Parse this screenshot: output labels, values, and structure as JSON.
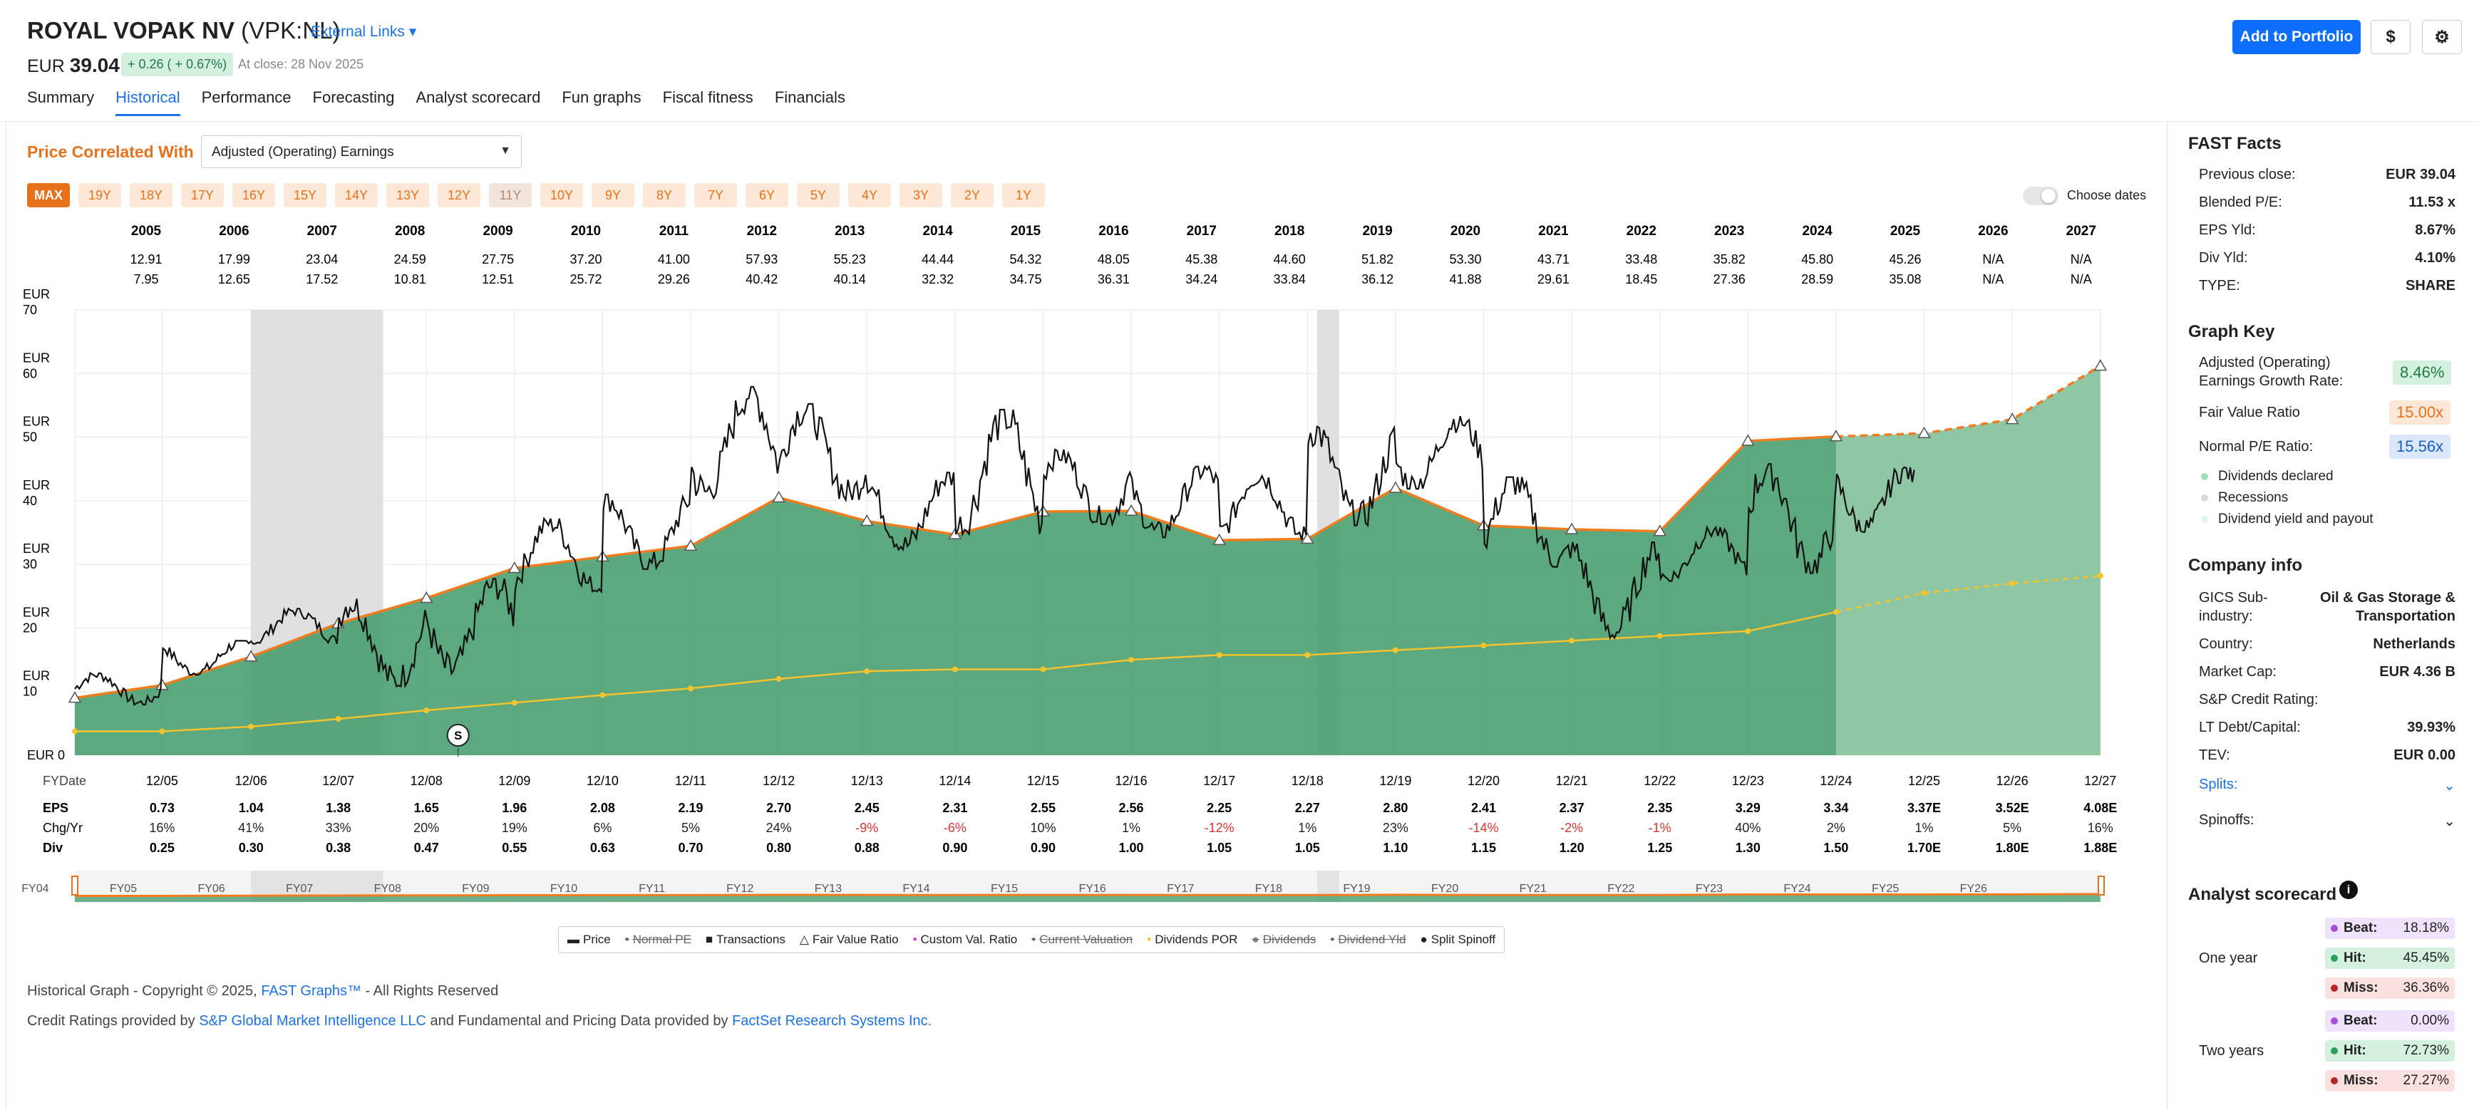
{
  "company": {
    "name": "ROYAL VOPAK NV",
    "ticker": "(VPK:NL)",
    "external_links": "External Links"
  },
  "quote": {
    "currency": "EUR",
    "price": "39.04",
    "change": "+ 0.26 ( + 0.67%)",
    "at_close": "At close: 28 Nov 2025"
  },
  "tabs": [
    "Summary",
    "Historical",
    "Performance",
    "Forecasting",
    "Analyst scorecard",
    "Fun graphs",
    "Fiscal fitness",
    "Financials"
  ],
  "buttons": {
    "add_portfolio": "Add to Portfolio",
    "dollar": "$",
    "settings": "⚙"
  },
  "controls": {
    "price_correlated_label": "Price Correlated With",
    "correlated_value": "Adjusted (Operating) Earnings",
    "year_buttons": [
      "MAX",
      "19Y",
      "18Y",
      "17Y",
      "16Y",
      "15Y",
      "14Y",
      "13Y",
      "12Y",
      "11Y",
      "10Y",
      "9Y",
      "8Y",
      "7Y",
      "6Y",
      "5Y",
      "4Y",
      "3Y",
      "2Y",
      "1Y"
    ],
    "choose_dates": "Choose dates"
  },
  "high_low": {
    "years": [
      "2005",
      "2006",
      "2007",
      "2008",
      "2009",
      "2010",
      "2011",
      "2012",
      "2013",
      "2014",
      "2015",
      "2016",
      "2017",
      "2018",
      "2019",
      "2020",
      "2021",
      "2022",
      "2023",
      "2024",
      "2025",
      "2026",
      "2027"
    ],
    "high": [
      "12.91",
      "17.99",
      "23.04",
      "24.59",
      "27.75",
      "37.20",
      "41.00",
      "57.93",
      "55.23",
      "44.44",
      "54.32",
      "48.05",
      "45.38",
      "44.60",
      "51.82",
      "53.30",
      "43.71",
      "33.48",
      "35.82",
      "45.80",
      "45.26",
      "N/A",
      "N/A"
    ],
    "low": [
      "7.95",
      "12.65",
      "17.52",
      "10.81",
      "12.51",
      "25.72",
      "29.26",
      "40.42",
      "40.14",
      "32.32",
      "34.75",
      "36.31",
      "34.24",
      "33.84",
      "36.12",
      "41.88",
      "29.61",
      "18.45",
      "27.36",
      "28.59",
      "35.08",
      "N/A",
      "N/A"
    ]
  },
  "chart_data": {
    "type": "area",
    "y_axis_labels": [
      "EUR\n70",
      "EUR\n60",
      "EUR\n50",
      "EUR\n40",
      "EUR\n30",
      "EUR\n20",
      "EUR\n10",
      "EUR 0"
    ],
    "ylim": [
      0,
      70
    ],
    "x_years": [
      2005,
      2006,
      2007,
      2008,
      2009,
      2010,
      2011,
      2012,
      2013,
      2014,
      2015,
      2016,
      2017,
      2018,
      2019,
      2020,
      2021,
      2022,
      2023,
      2024,
      2025,
      2026,
      2027
    ],
    "fair_value": [
      9.0,
      11.0,
      15.5,
      20.7,
      24.7,
      29.4,
      31.2,
      32.9,
      40.5,
      36.8,
      34.7,
      38.3,
      38.4,
      33.8,
      34.0,
      42.0,
      36.1,
      35.5,
      35.2,
      49.4,
      50.1,
      50.6,
      52.8,
      61.2
    ],
    "fair_value_x": [
      2005.0,
      2005.99,
      2007.0,
      2007.99,
      2008.99,
      2009.99,
      2010.99,
      2011.99,
      2012.99,
      2013.99,
      2014.99,
      2015.99,
      2016.99,
      2017.99,
      2018.99,
      2019.99,
      2020.99,
      2021.99,
      2022.99,
      2023.99,
      2024.99,
      2025.99,
      2026.99,
      2027.99
    ],
    "dividends_por": [
      3.75,
      3.75,
      4.5,
      5.7,
      7.05,
      8.25,
      9.45,
      10.5,
      12.0,
      13.2,
      13.5,
      13.5,
      15.0,
      15.75,
      15.75,
      16.5,
      17.25,
      18.0,
      18.75,
      19.5,
      22.5,
      25.5,
      27.0,
      28.2
    ],
    "recessions": [
      [
        2007.0,
        2008.5
      ],
      [
        2019.1,
        2019.35
      ]
    ],
    "split_marker": {
      "label": "S",
      "x": 2009.35
    },
    "fy_labels": [
      "12/05",
      "12/06",
      "12/07",
      "12/08",
      "12/09",
      "12/10",
      "12/11",
      "12/12",
      "12/13",
      "12/14",
      "12/15",
      "12/16",
      "12/17",
      "12/18",
      "12/19",
      "12/20",
      "12/21",
      "12/22",
      "12/23",
      "12/24",
      "12/25",
      "12/26",
      "12/27"
    ],
    "eps": [
      "0.73",
      "1.04",
      "1.38",
      "1.65",
      "1.96",
      "2.08",
      "2.19",
      "2.70",
      "2.45",
      "2.31",
      "2.55",
      "2.56",
      "2.25",
      "2.27",
      "2.80",
      "2.41",
      "2.37",
      "2.35",
      "3.29",
      "3.34",
      "3.37E",
      "3.52E",
      "4.08E"
    ],
    "chg": [
      "16%",
      "41%",
      "33%",
      "20%",
      "19%",
      "6%",
      "5%",
      "24%",
      "-9%",
      "-6%",
      "10%",
      "1%",
      "-12%",
      "1%",
      "23%",
      "-14%",
      "-2%",
      "-1%",
      "40%",
      "2%",
      "1%",
      "5%",
      "16%"
    ],
    "div": [
      "0.25",
      "0.30",
      "0.38",
      "0.47",
      "0.55",
      "0.63",
      "0.70",
      "0.80",
      "0.88",
      "0.90",
      "0.90",
      "1.00",
      "1.05",
      "1.05",
      "1.10",
      "1.15",
      "1.20",
      "1.25",
      "1.30",
      "1.50",
      "1.70E",
      "1.80E",
      "1.88E"
    ],
    "row_labels": {
      "fydate": "FYDate",
      "eps": "EPS",
      "chg": "Chg/Yr",
      "div": "Div"
    },
    "mini_labels": [
      "FY04",
      "FY05",
      "FY06",
      "FY07",
      "FY08",
      "FY09",
      "FY10",
      "FY11",
      "FY12",
      "FY13",
      "FY14",
      "FY15",
      "FY16",
      "FY17",
      "FY18",
      "FY19",
      "FY20",
      "FY21",
      "FY22",
      "FY23",
      "FY24",
      "FY25",
      "FY26"
    ],
    "colors": {
      "area": "#3f9a6a",
      "forecast_area": "#8fc6a4",
      "fair_value": "#f07c1e",
      "price": "#111111",
      "dividends": "#f5c32c",
      "recession": "#e0e0e0"
    }
  },
  "legend": [
    {
      "label": "Price",
      "style": "normal"
    },
    {
      "label": "Normal PE",
      "style": "strike"
    },
    {
      "label": "Transactions",
      "style": "normal"
    },
    {
      "label": "Fair Value Ratio",
      "style": "normal"
    },
    {
      "label": "Custom Val. Ratio",
      "style": "normal"
    },
    {
      "label": "Current Valuation",
      "style": "strike"
    },
    {
      "label": "Dividends POR",
      "style": "normal"
    },
    {
      "label": "Dividends",
      "style": "strike"
    },
    {
      "label": "Dividend Yld",
      "style": "strike"
    },
    {
      "label": "Split Spinoff",
      "style": "normal"
    }
  ],
  "footer": {
    "line1_a": "Historical Graph - Copyright © 2025, ",
    "line1_link": "FAST Graphs™",
    "line1_b": " - All Rights Reserved",
    "line2_a": "Credit Ratings provided by ",
    "line2_link1": "S&P Global Market Intelligence LLC",
    "line2_b": " and Fundamental and Pricing Data provided by ",
    "line2_link2": "FactSet Research Systems Inc."
  },
  "fast_facts": {
    "title": "FAST Facts",
    "rows": [
      {
        "label": "Previous close:",
        "value": "EUR 39.04"
      },
      {
        "label": "Blended P/E:",
        "value": "11.53 x"
      },
      {
        "label": "EPS Yld:",
        "value": "8.67%"
      },
      {
        "label": "Div Yld:",
        "value": "4.10%"
      },
      {
        "label": "TYPE:",
        "value": "SHARE"
      }
    ]
  },
  "graph_key": {
    "title": "Graph Key",
    "growth_label": "Adjusted (Operating)\nEarnings Growth Rate:",
    "growth_value": "8.46%",
    "fvr_label": "Fair Value Ratio",
    "fvr_value": "15.00x",
    "npe_label": "Normal P/E Ratio:",
    "npe_value": "15.56x",
    "items": [
      "Dividends declared",
      "Recessions",
      "Dividend yield and payout"
    ]
  },
  "company_info": {
    "title": "Company info",
    "rows": [
      {
        "label": "GICS Sub-\nindustry:",
        "value": "Oil & Gas Storage &\nTransportation"
      },
      {
        "label": "Country:",
        "value": "Netherlands"
      },
      {
        "label": "Market Cap:",
        "value": "EUR 4.36 B"
      },
      {
        "label": "S&P Credit Rating:",
        "value": ""
      },
      {
        "label": "LT Debt/Capital:",
        "value": "39.93%"
      },
      {
        "label": "TEV:",
        "value": "EUR 0.00"
      }
    ],
    "splits": "Splits:",
    "spinoffs": "Spinoffs:"
  },
  "analyst_scorecard": {
    "title": "Analyst scorecard",
    "info": "i",
    "one_year": {
      "label": "One year",
      "beat": "18.18%",
      "hit": "45.45%",
      "miss": "36.36%"
    },
    "two_years": {
      "label": "Two years",
      "beat": "0.00%",
      "hit": "72.73%",
      "miss": "27.27%"
    },
    "labels": {
      "beat": "Beat:",
      "hit": "Hit:",
      "miss": "Miss:"
    }
  }
}
